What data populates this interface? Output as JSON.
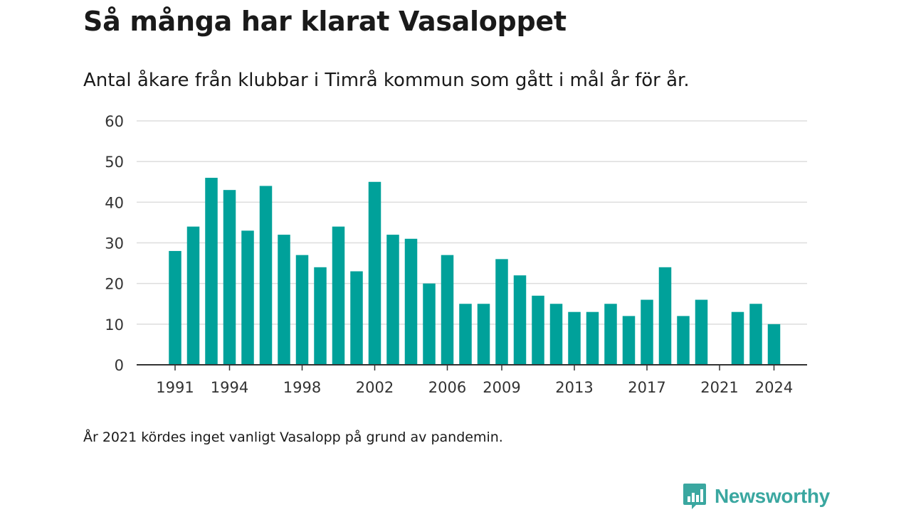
{
  "title": "Så många har klarat Vasaloppet",
  "subtitle": "Antal åkare från klubbar i Timrå kommun som gått i mål år för år.",
  "footnote": "År 2021 kördes inget vanligt Vasalopp på grund av pandemin.",
  "brand": {
    "name": "Newsworthy",
    "color": "#3aa7a0",
    "icon": "bar-chart-icon"
  },
  "colors": {
    "bar": "#00a19a",
    "grid": "#dddddd",
    "axis": "#333333",
    "text": "#333333"
  },
  "chart_data": {
    "type": "bar",
    "x": [
      1991,
      1992,
      1993,
      1994,
      1995,
      1996,
      1997,
      1998,
      1999,
      2000,
      2001,
      2002,
      2003,
      2004,
      2005,
      2006,
      2007,
      2008,
      2009,
      2010,
      2011,
      2012,
      2013,
      2014,
      2015,
      2016,
      2017,
      2018,
      2019,
      2020,
      2021,
      2022,
      2023,
      2024
    ],
    "values": [
      28,
      34,
      46,
      43,
      33,
      44,
      32,
      27,
      24,
      34,
      23,
      45,
      32,
      31,
      20,
      27,
      15,
      15,
      26,
      22,
      17,
      15,
      13,
      13,
      15,
      12,
      16,
      24,
      12,
      16,
      0,
      13,
      15,
      10
    ],
    "x_tick_labels": [
      1991,
      1994,
      1998,
      2002,
      2006,
      2009,
      2013,
      2017,
      2021,
      2024
    ],
    "yticks": [
      0,
      10,
      20,
      30,
      40,
      50,
      60
    ],
    "ylim": [
      0,
      60
    ],
    "xlabel": "",
    "ylabel": "",
    "grid": true
  }
}
